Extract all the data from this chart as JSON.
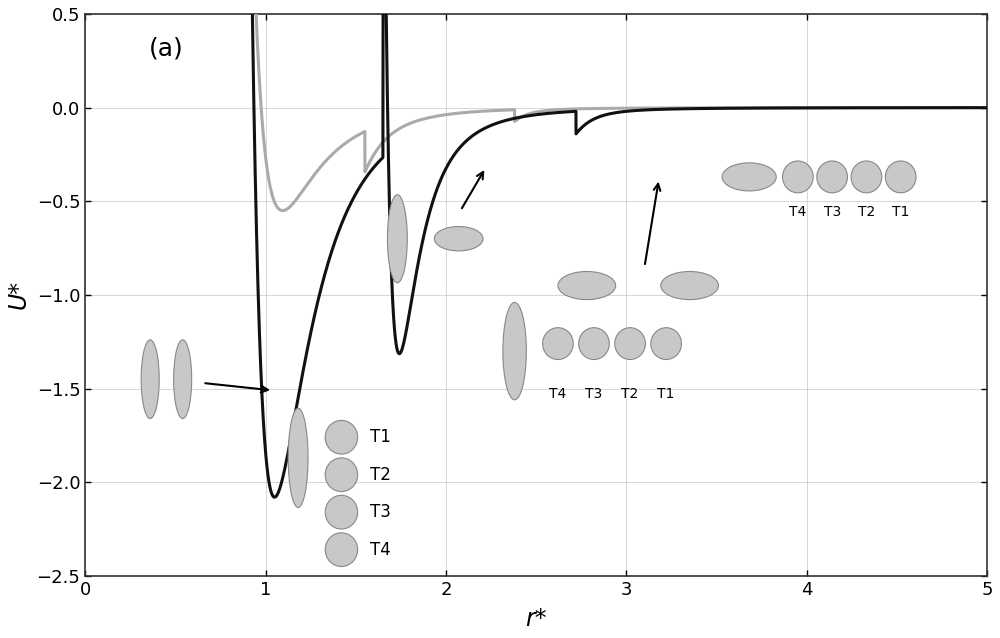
{
  "title": "(a)",
  "xlabel": "r*",
  "ylabel": "U*",
  "xlim": [
    0,
    5
  ],
  "ylim": [
    -2.5,
    0.5
  ],
  "yticks": [
    0.5,
    0.0,
    -0.5,
    -1.0,
    -1.5,
    -2.0,
    -2.5
  ],
  "xticks": [
    0,
    1,
    2,
    3,
    4,
    5
  ],
  "bg_color": "#ffffff",
  "grid_color": "#b0b0b0",
  "curve_black_color": "#111111",
  "curve_gray_color": "#aaaaaa",
  "ellipse_fc": "#c8c8c8",
  "ellipse_ec": "#888888",
  "curve_lw": 2.2
}
